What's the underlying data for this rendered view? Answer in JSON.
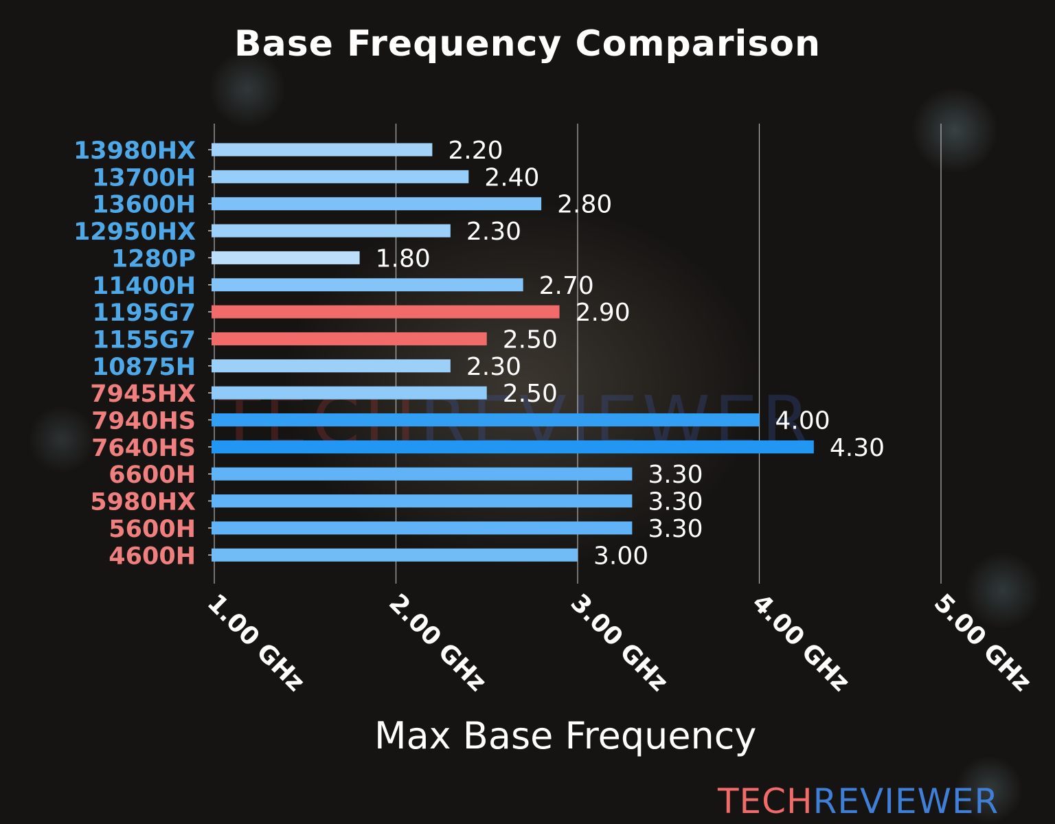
{
  "chart_data": {
    "type": "bar",
    "orientation": "horizontal",
    "title": "Base Frequency Comparison",
    "xlabel": "Max Base Frequency",
    "ylabel": "",
    "xlim": [
      1.0,
      5.0
    ],
    "xticks": [
      1,
      2,
      3,
      4,
      5
    ],
    "xtick_labels": [
      "1.00 GHz",
      "2.00 GHz",
      "3.00 GHz",
      "4.00 GHz",
      "5.00 GHz"
    ],
    "grid": "vertical",
    "categories": [
      "13980HX",
      "13700H",
      "13600H",
      "12950HX",
      "1280P",
      "11400H",
      "1195G7",
      "1155G7",
      "10875H",
      "7945HX",
      "7940HS",
      "7640HS",
      "6600H",
      "5980HX",
      "5600H",
      "4600H"
    ],
    "values": [
      2.2,
      2.4,
      2.8,
      2.3,
      1.8,
      2.7,
      2.9,
      2.5,
      2.3,
      2.5,
      4.0,
      4.3,
      3.3,
      3.3,
      3.3,
      3.0
    ],
    "value_labels": [
      "2.20",
      "2.40",
      "2.80",
      "2.30",
      "1.80",
      "2.70",
      "2.90",
      "2.50",
      "2.30",
      "2.50",
      "4.00",
      "4.30",
      "3.30",
      "3.30",
      "3.30",
      "3.00"
    ],
    "highlighted": [
      "1195G7",
      "1155G7"
    ],
    "label_brand": [
      "intel",
      "intel",
      "intel",
      "intel",
      "intel",
      "intel",
      "intel",
      "intel",
      "intel",
      "amd",
      "amd",
      "amd",
      "amd",
      "amd",
      "amd",
      "amd"
    ]
  },
  "colors": {
    "bar_scale_low": "#bbdefb",
    "bar_scale_high": "#2196f3",
    "highlight": "#f26b6b",
    "intel_label": "#4fa8e8",
    "amd_label": "#f08080",
    "gridline": "#d0d0d0"
  },
  "logo": {
    "part1": "TECH",
    "part2": "REVIEWER"
  }
}
